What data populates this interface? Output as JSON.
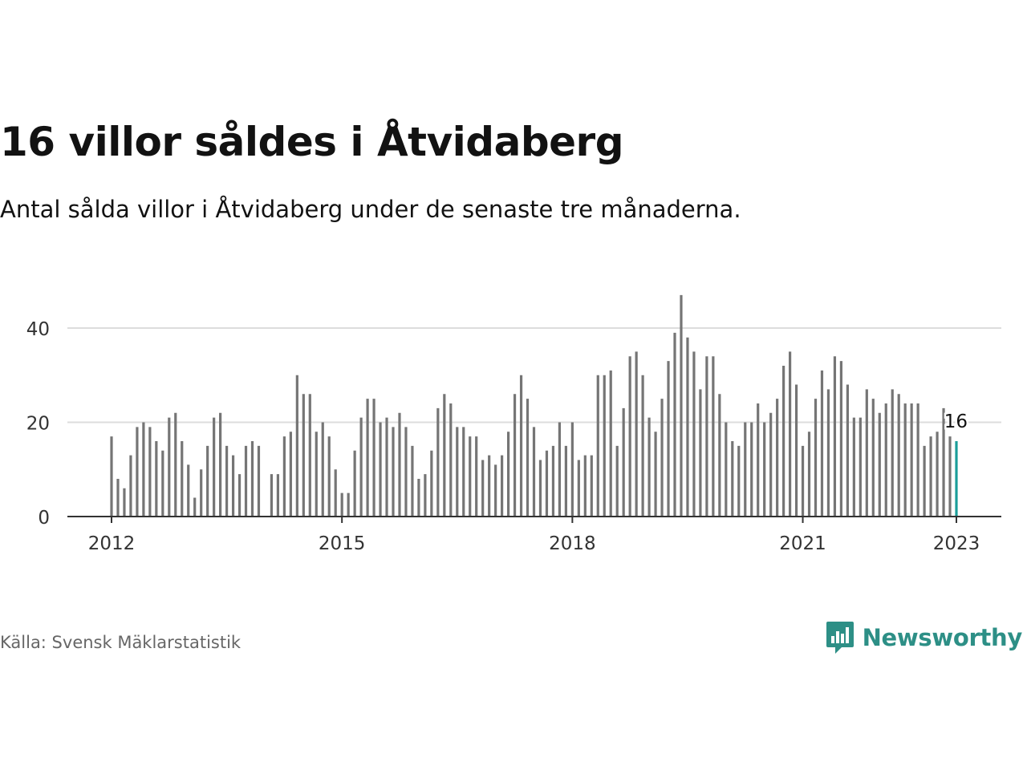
{
  "title": "16 villor såldes i Åtvidaberg",
  "subtitle": "Antal sålda villor i Åtvidaberg under de senaste tre månaderna.",
  "source": "Källa: Svensk Mäklarstatistik",
  "brand": "Newsworthy",
  "colors": {
    "bar": "#757575",
    "highlight": "#1a9e9a",
    "grid": "#dddddd",
    "axis": "#333333",
    "brand": "#2d8f86"
  },
  "chart_data": {
    "type": "bar",
    "x_start": "2012-01",
    "x_end": "2023-01",
    "frequency": "monthly",
    "ylim": [
      0,
      48
    ],
    "yticks": [
      0,
      20,
      40
    ],
    "xticks": [
      "2012",
      "2015",
      "2018",
      "2021",
      "2023"
    ],
    "grid": true,
    "highlight_last": true,
    "last_label": "16",
    "values": [
      17,
      8,
      6,
      13,
      19,
      20,
      19,
      16,
      14,
      21,
      22,
      16,
      11,
      4,
      10,
      15,
      21,
      22,
      15,
      13,
      9,
      15,
      16,
      15,
      0,
      9,
      9,
      17,
      18,
      30,
      26,
      26,
      18,
      20,
      17,
      10,
      5,
      5,
      14,
      21,
      25,
      25,
      20,
      21,
      19,
      22,
      19,
      15,
      8,
      9,
      14,
      23,
      26,
      24,
      19,
      19,
      17,
      17,
      12,
      13,
      11,
      13,
      18,
      26,
      30,
      25,
      19,
      12,
      14,
      15,
      20,
      15,
      20,
      12,
      13,
      13,
      30,
      30,
      31,
      15,
      23,
      34,
      35,
      30,
      21,
      18,
      25,
      33,
      39,
      47,
      38,
      35,
      27,
      34,
      34,
      26,
      20,
      16,
      15,
      20,
      20,
      24,
      20,
      22,
      25,
      32,
      35,
      28,
      15,
      18,
      25,
      31,
      27,
      34,
      33,
      28,
      21,
      21,
      27,
      25,
      22,
      24,
      27,
      26,
      24,
      24,
      24,
      15,
      17,
      18,
      23,
      17,
      16
    ]
  }
}
